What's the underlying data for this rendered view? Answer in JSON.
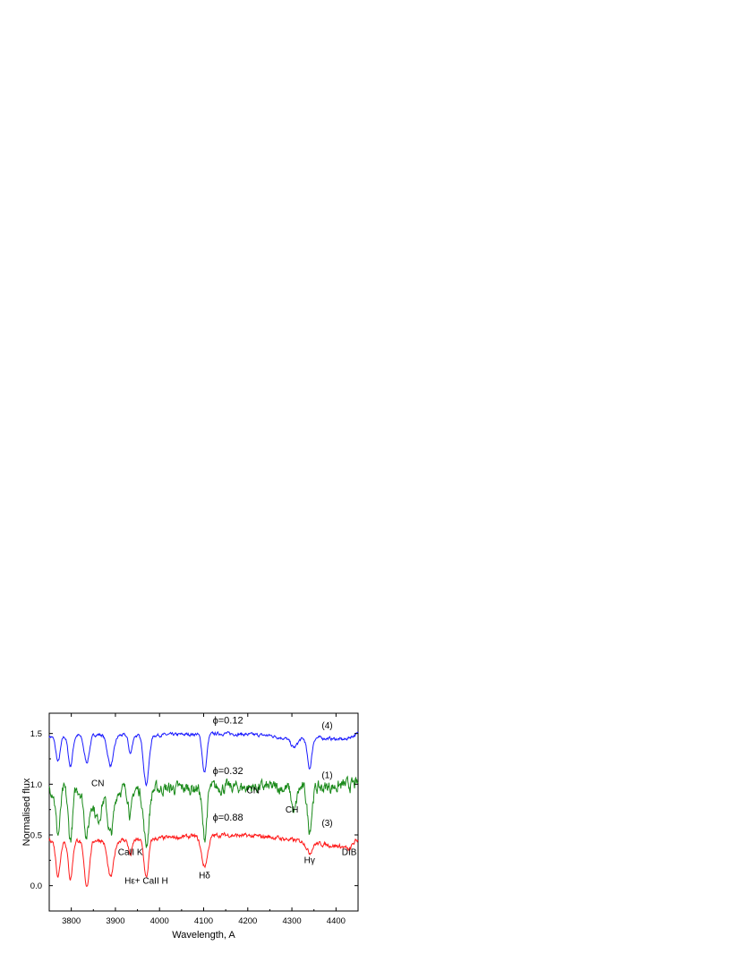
{
  "chart_data": {
    "type": "line",
    "title": "",
    "xlabel": "Wavelength, A",
    "ylabel": "Normalised flux",
    "xlim": [
      3750,
      4450
    ],
    "ylim": [
      -0.25,
      1.7
    ],
    "grid": false,
    "x_ticks": [
      3800,
      3900,
      4000,
      4100,
      4200,
      4300,
      4400
    ],
    "y_ticks": [
      0.0,
      0.5,
      1.0,
      1.5
    ],
    "y_tick_labels": [
      "0.0",
      "0.5",
      "1.0",
      "1.5"
    ],
    "series": [
      {
        "name": "(4)",
        "phase_label": "ϕ=0.12",
        "color": "#1a1aff",
        "continuum": [
          [
            3750,
            1.47
          ],
          [
            3850,
            1.49
          ],
          [
            3950,
            1.48
          ],
          [
            4050,
            1.49
          ],
          [
            4150,
            1.5
          ],
          [
            4250,
            1.48
          ],
          [
            4300,
            1.44
          ],
          [
            4350,
            1.46
          ],
          [
            4420,
            1.44
          ],
          [
            4450,
            1.5
          ]
        ],
        "lines": [
          [
            3770,
            0.25,
            5
          ],
          [
            3798,
            0.3,
            5
          ],
          [
            3835,
            0.27,
            6
          ],
          [
            3889,
            0.3,
            7
          ],
          [
            3934,
            0.18,
            4
          ],
          [
            3970,
            0.48,
            6
          ],
          [
            4102,
            0.38,
            5
          ],
          [
            4305,
            0.08,
            7
          ],
          [
            4340,
            0.3,
            5
          ]
        ],
        "noise": 0.015
      },
      {
        "name": "(1)",
        "phase_label": "ϕ=0.32",
        "color": "#1a8a1a",
        "continuum": [
          [
            3750,
            0.96
          ],
          [
            3850,
            0.95
          ],
          [
            3950,
            0.95
          ],
          [
            4050,
            0.96
          ],
          [
            4150,
            0.97
          ],
          [
            4250,
            0.97
          ],
          [
            4300,
            0.96
          ],
          [
            4350,
            0.96
          ],
          [
            4450,
            1.0
          ]
        ],
        "lines": [
          [
            3770,
            0.45,
            5
          ],
          [
            3798,
            0.5,
            5
          ],
          [
            3835,
            0.45,
            6
          ],
          [
            3860,
            0.3,
            8
          ],
          [
            3889,
            0.45,
            7
          ],
          [
            3934,
            0.25,
            4
          ],
          [
            3970,
            0.55,
            6
          ],
          [
            4102,
            0.5,
            5
          ],
          [
            4305,
            0.25,
            5
          ],
          [
            4340,
            0.4,
            5
          ]
        ],
        "noise": 0.06
      },
      {
        "name": "(3)",
        "phase_label": "ϕ=0.88",
        "color": "#ff1a1a",
        "continuum": [
          [
            3750,
            0.45
          ],
          [
            3850,
            0.45
          ],
          [
            3950,
            0.45
          ],
          [
            4050,
            0.48
          ],
          [
            4150,
            0.5
          ],
          [
            4250,
            0.48
          ],
          [
            4300,
            0.45
          ],
          [
            4350,
            0.42
          ],
          [
            4420,
            0.38
          ],
          [
            4450,
            0.45
          ]
        ],
        "lines": [
          [
            3770,
            0.35,
            5
          ],
          [
            3798,
            0.38,
            5
          ],
          [
            3835,
            0.45,
            6
          ],
          [
            3889,
            0.37,
            7
          ],
          [
            3934,
            0.15,
            4
          ],
          [
            3970,
            0.38,
            5
          ],
          [
            4102,
            0.3,
            7
          ],
          [
            4340,
            0.1,
            6
          ],
          [
            4430,
            0.05,
            5
          ]
        ],
        "noise": 0.02
      }
    ],
    "annotations": [
      {
        "text": "CN",
        "x": 3860,
        "y": 0.98
      },
      {
        "text": "CN",
        "x": 4212,
        "y": 0.91
      },
      {
        "text": "CH",
        "x": 4300,
        "y": 0.72
      },
      {
        "text": "CaII K",
        "x": 3934,
        "y": 0.3
      },
      {
        "text": "Hε+ CaII H",
        "x": 3970,
        "y": 0.02
      },
      {
        "text": "Hδ",
        "x": 4102,
        "y": 0.07
      },
      {
        "text": "Hγ",
        "x": 4340,
        "y": 0.22
      },
      {
        "text": "DIB",
        "x": 4430,
        "y": 0.3
      },
      {
        "text": "(4)",
        "x": 4380,
        "y": 1.55
      },
      {
        "text": "(1)",
        "x": 4380,
        "y": 1.06
      },
      {
        "text": "(3)",
        "x": 4380,
        "y": 0.59
      },
      {
        "text": "ϕ=0.12",
        "x": 4155,
        "y": 1.6
      },
      {
        "text": "ϕ=0.32",
        "x": 4155,
        "y": 1.1
      },
      {
        "text": "ϕ=0.88",
        "x": 4155,
        "y": 0.64
      }
    ]
  }
}
